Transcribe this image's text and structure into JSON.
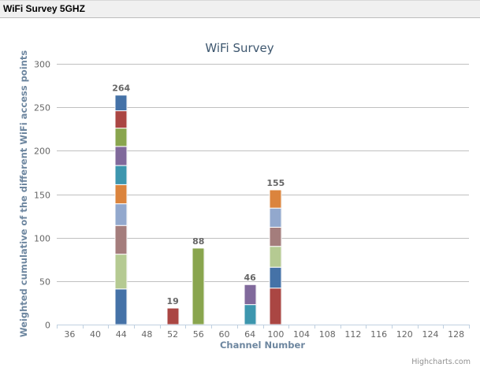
{
  "header": {
    "title": "WiFi Survey 5GHZ"
  },
  "chart_data": {
    "type": "bar",
    "stacked": true,
    "title": "WiFi Survey",
    "xlabel": "Channel Number",
    "ylabel": "Weighted cumulative of the different WiFi access points",
    "ylim": [
      0,
      300
    ],
    "yticks": [
      0,
      50,
      100,
      150,
      200,
      250,
      300
    ],
    "grid": true,
    "categories": [
      "36",
      "40",
      "44",
      "48",
      "52",
      "56",
      "60",
      "64",
      "100",
      "104",
      "108",
      "112",
      "116",
      "120",
      "124",
      "128"
    ],
    "stacks": [
      {
        "channel": "44",
        "total": 264,
        "segments_bottom_to_top": [
          {
            "value": 41,
            "color": "#4572A7"
          },
          {
            "value": 40,
            "color": "#B5CA92"
          },
          {
            "value": 33,
            "color": "#A47D7C"
          },
          {
            "value": 25,
            "color": "#92A8CD"
          },
          {
            "value": 22,
            "color": "#DB843D"
          },
          {
            "value": 22,
            "color": "#3D96AE"
          },
          {
            "value": 22,
            "color": "#80699B"
          },
          {
            "value": 21,
            "color": "#89A54E"
          },
          {
            "value": 20,
            "color": "#AA4643"
          },
          {
            "value": 18,
            "color": "#4572A7"
          }
        ]
      },
      {
        "channel": "52",
        "total": 19,
        "segments_bottom_to_top": [
          {
            "value": 19,
            "color": "#AA4643"
          }
        ]
      },
      {
        "channel": "56",
        "total": 88,
        "segments_bottom_to_top": [
          {
            "value": 88,
            "color": "#89A54E"
          }
        ]
      },
      {
        "channel": "64",
        "total": 46,
        "segments_bottom_to_top": [
          {
            "value": 23,
            "color": "#3D96AE"
          },
          {
            "value": 23,
            "color": "#80699B"
          }
        ]
      },
      {
        "channel": "100",
        "total": 155,
        "segments_bottom_to_top": [
          {
            "value": 42,
            "color": "#AA4643"
          },
          {
            "value": 24,
            "color": "#4572A7"
          },
          {
            "value": 24,
            "color": "#B5CA92"
          },
          {
            "value": 22,
            "color": "#A47D7C"
          },
          {
            "value": 22,
            "color": "#92A8CD"
          },
          {
            "value": 21,
            "color": "#DB843D"
          }
        ]
      }
    ],
    "legend": "none",
    "credits": "Highcharts.com"
  },
  "colors": {
    "title": "#3E576F",
    "axis_title": "#6D869F",
    "grid": "#C0C0C0",
    "axis_line": "#C0D0E0"
  }
}
